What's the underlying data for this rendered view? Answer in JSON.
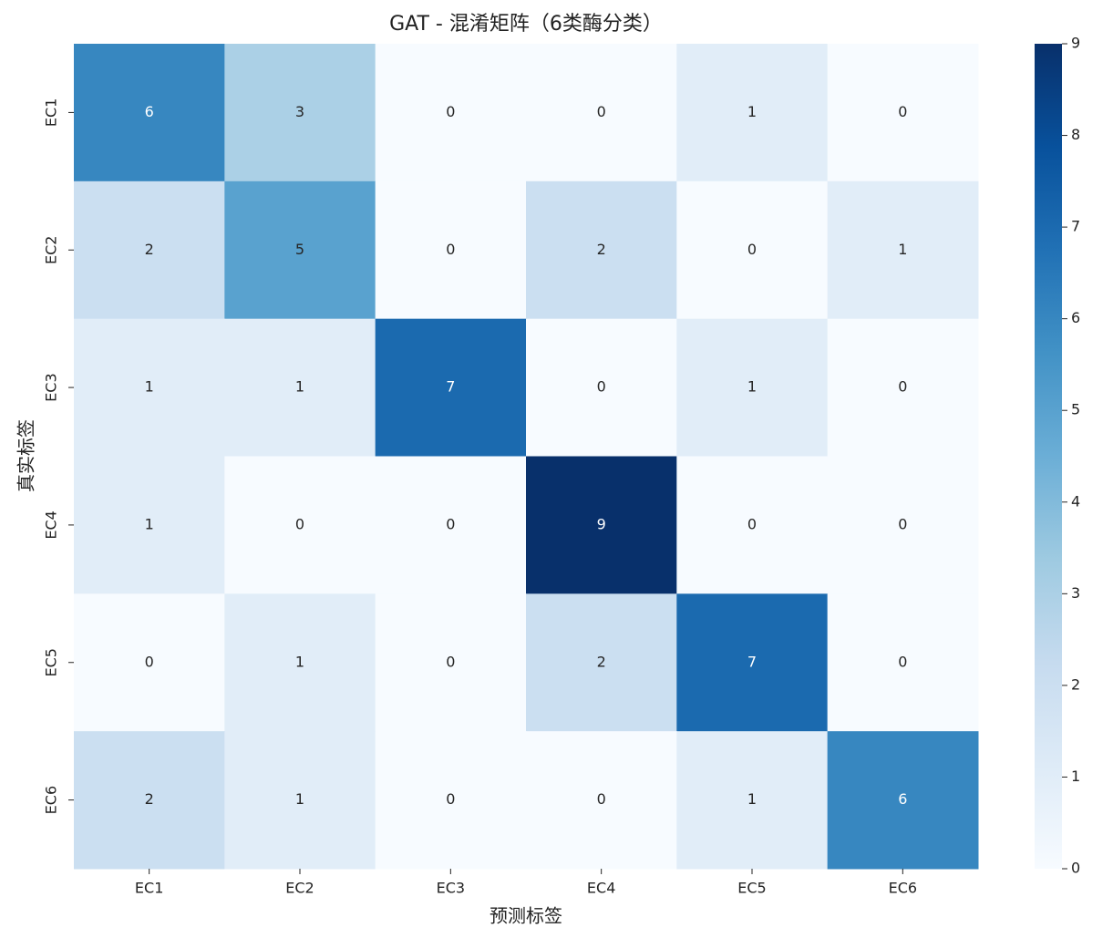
{
  "chart_data": {
    "type": "heatmap",
    "title": "GAT - 混淆矩阵（6类酶分类）",
    "xlabel": "预测标签",
    "ylabel": "真实标签",
    "x_categories": [
      "EC1",
      "EC2",
      "EC3",
      "EC4",
      "EC5",
      "EC6"
    ],
    "y_categories": [
      "EC1",
      "EC2",
      "EC3",
      "EC4",
      "EC5",
      "EC6"
    ],
    "values": [
      [
        6,
        3,
        0,
        0,
        1,
        0
      ],
      [
        2,
        5,
        0,
        2,
        0,
        1
      ],
      [
        1,
        1,
        7,
        0,
        1,
        0
      ],
      [
        1,
        0,
        0,
        9,
        0,
        0
      ],
      [
        0,
        1,
        0,
        2,
        7,
        0
      ],
      [
        2,
        1,
        0,
        0,
        1,
        6
      ]
    ],
    "colormap": "Blues",
    "clim": [
      0,
      9
    ],
    "cticks": [
      0,
      1,
      2,
      3,
      4,
      5,
      6,
      7,
      8,
      9
    ]
  }
}
